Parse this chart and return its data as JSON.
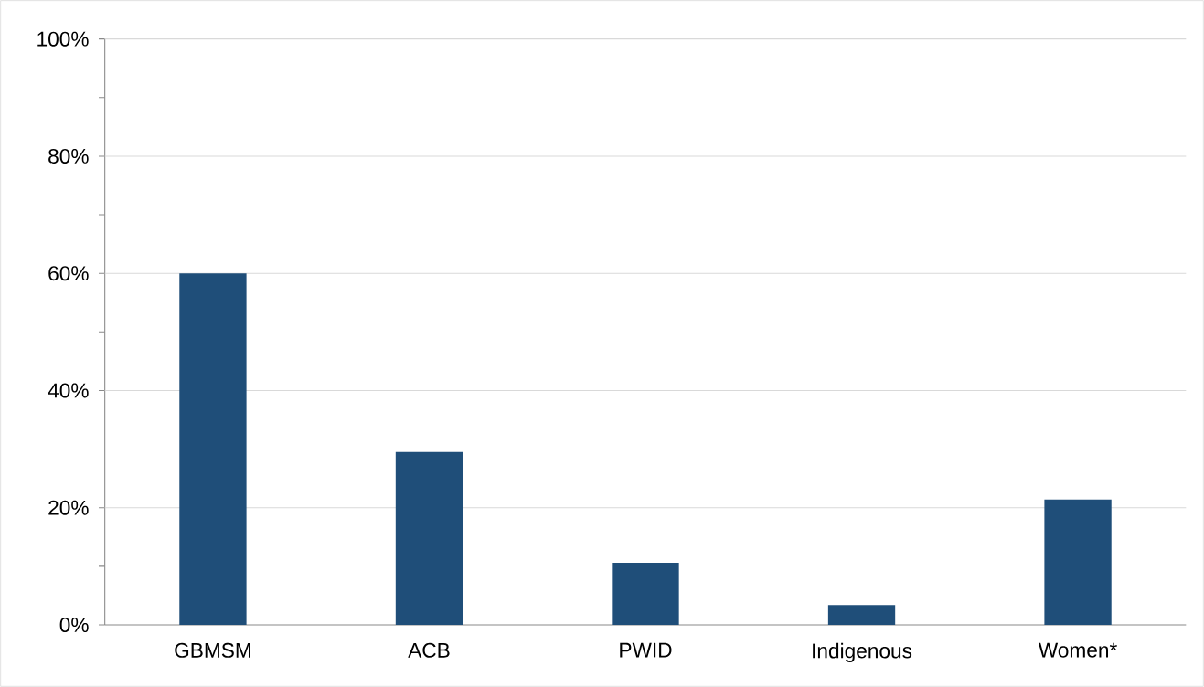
{
  "chart_data": {
    "type": "bar",
    "categories": [
      "GBMSM",
      "ACB",
      "PWID",
      "Indigenous",
      "Women*"
    ],
    "values": [
      60,
      29.5,
      10.6,
      3.4,
      21.4
    ],
    "color": "#1f4e79",
    "ylim": [
      0,
      100
    ],
    "yticks": [
      {
        "value": 0,
        "label": "0%"
      },
      {
        "value": 10,
        "label": null
      },
      {
        "value": 20,
        "label": "20%"
      },
      {
        "value": 30,
        "label": null
      },
      {
        "value": 40,
        "label": "40%"
      },
      {
        "value": 50,
        "label": null
      },
      {
        "value": 60,
        "label": "60%"
      },
      {
        "value": 70,
        "label": null
      },
      {
        "value": 80,
        "label": "80%"
      },
      {
        "value": 90,
        "label": null
      },
      {
        "value": 100,
        "label": "100%"
      }
    ],
    "grid": "y"
  }
}
